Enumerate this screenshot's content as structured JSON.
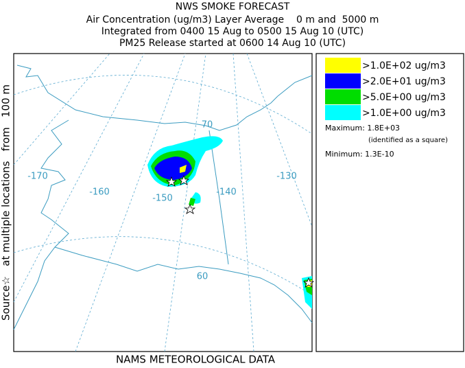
{
  "header": {
    "title": "NWS SMOKE FORECAST",
    "lines": [
      "Air Concentration (ug/m3) Layer Average    0 m and  5000 m",
      "Integrated from 0400 15 Aug to 0500 15 Aug 10 (UTC)",
      "PM25 Release started at 0600 14 Aug 10 (UTC)"
    ]
  },
  "side_label": "Source☆   at multiple locations   from   100 m",
  "footer": "NAMS METEOROLOGICAL DATA",
  "map": {
    "longitude_labels": [
      "-170",
      "-160",
      "-150",
      "-140",
      "-130"
    ],
    "latitude_labels": [
      "70",
      "60"
    ]
  },
  "legend": {
    "items": [
      {
        "label": ">1.0E+02 ug/m3",
        "color": "#ffff00"
      },
      {
        "label": ">2.0E+01 ug/m3",
        "color": "#0000ff"
      },
      {
        "label": ">5.0E+00 ug/m3",
        "color": "#00dd00"
      },
      {
        "label": ">1.0E+00 ug/m3",
        "color": "#00ffff"
      }
    ],
    "maximum": "Maximum: 1.8E+03",
    "maximum_note": "(identified as a square)",
    "minimum": "Minimum: 1.3E-10"
  }
}
